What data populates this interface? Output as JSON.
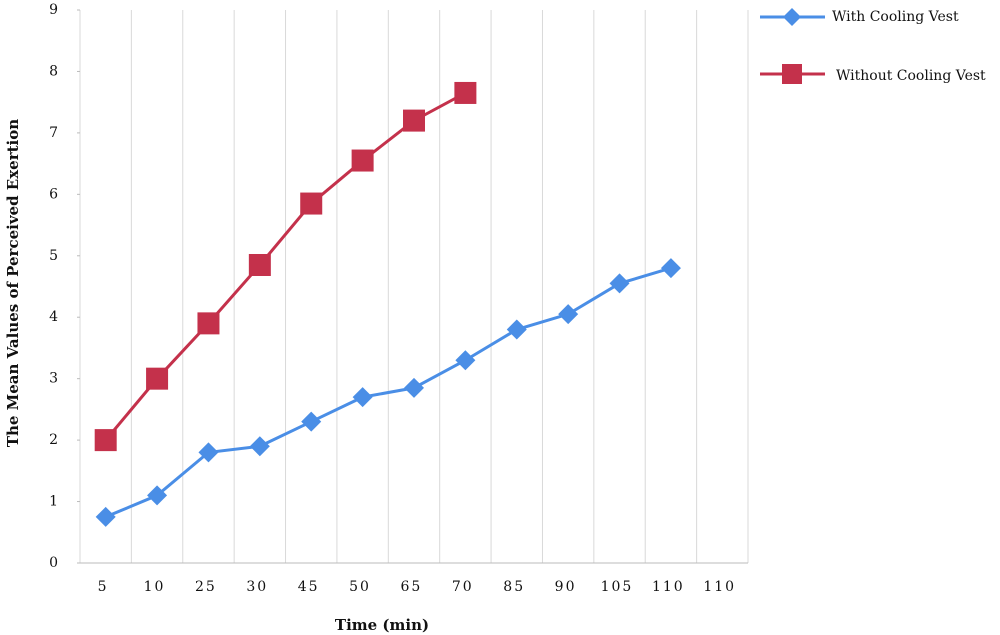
{
  "chart_data": {
    "type": "line",
    "x_label": "Time (min)",
    "y_label": "The Mean Values of  Perceived Exertion",
    "categories": [
      "5",
      "10",
      "25",
      "30",
      "45",
      "50",
      "65",
      "70",
      "85",
      "90",
      "105",
      "110",
      "110"
    ],
    "series": [
      {
        "name": "With Cooling Vest",
        "color": "#4a8ee6",
        "marker": "diamond",
        "values": [
          0.75,
          1.1,
          1.8,
          1.9,
          2.3,
          2.7,
          2.85,
          3.3,
          3.8,
          4.05,
          4.55,
          4.8,
          null
        ]
      },
      {
        "name": "Without Cooling Vest",
        "color": "#c4314b",
        "marker": "square",
        "values": [
          2,
          3,
          3.9,
          4.85,
          5.85,
          6.55,
          7.2,
          7.65,
          null,
          null,
          null,
          null,
          null
        ]
      }
    ],
    "ylim": [
      0,
      9
    ],
    "yticks": [
      0,
      1,
      2,
      3,
      4,
      5,
      6,
      7,
      8,
      9
    ],
    "grid": true,
    "legend": "top-right"
  }
}
